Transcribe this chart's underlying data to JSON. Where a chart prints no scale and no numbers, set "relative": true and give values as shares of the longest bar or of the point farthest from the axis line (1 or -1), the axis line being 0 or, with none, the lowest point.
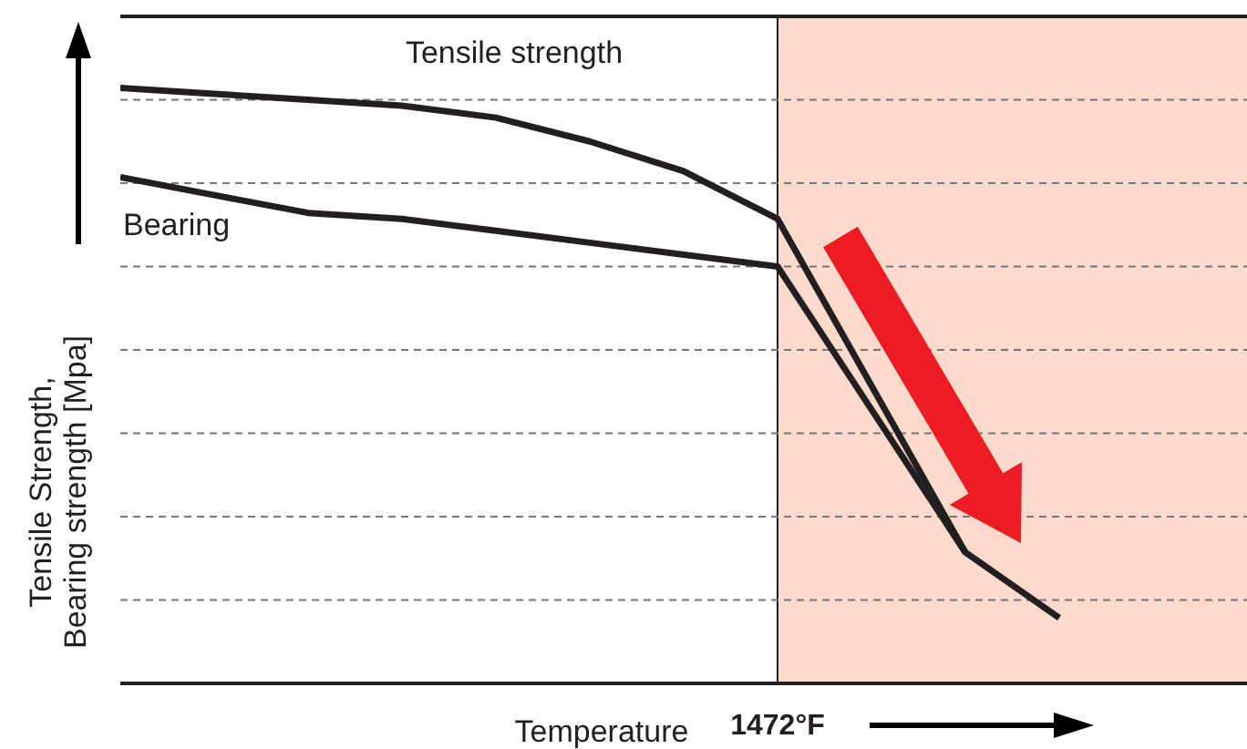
{
  "chart_data": {
    "type": "line",
    "relative": true,
    "xlabel": "Temperature",
    "ylabel": "Tensile Strength,\nBearing strength [Mpa]",
    "categories": [
      null,
      null,
      null,
      null,
      null,
      null,
      null,
      null,
      null,
      null,
      null,
      null,
      null
    ],
    "series": [
      {
        "name": "Tensile strength",
        "color": "#231f20",
        "values": [
          1.0,
          0.99,
          0.98,
          0.97,
          0.95,
          0.91,
          0.86,
          0.78,
          0.5,
          0.22,
          0.11,
          null,
          null
        ]
      },
      {
        "name": "Bearing",
        "color": "#231f20",
        "values": [
          0.85,
          0.82,
          0.79,
          0.78,
          0.76,
          0.74,
          0.72,
          0.7,
          0.46,
          0.22,
          null,
          null,
          null
        ]
      }
    ],
    "annotations": [
      "1472°F"
    ],
    "grid": "y",
    "legend": false,
    "marker": "none",
    "line_style": "solid"
  }
}
